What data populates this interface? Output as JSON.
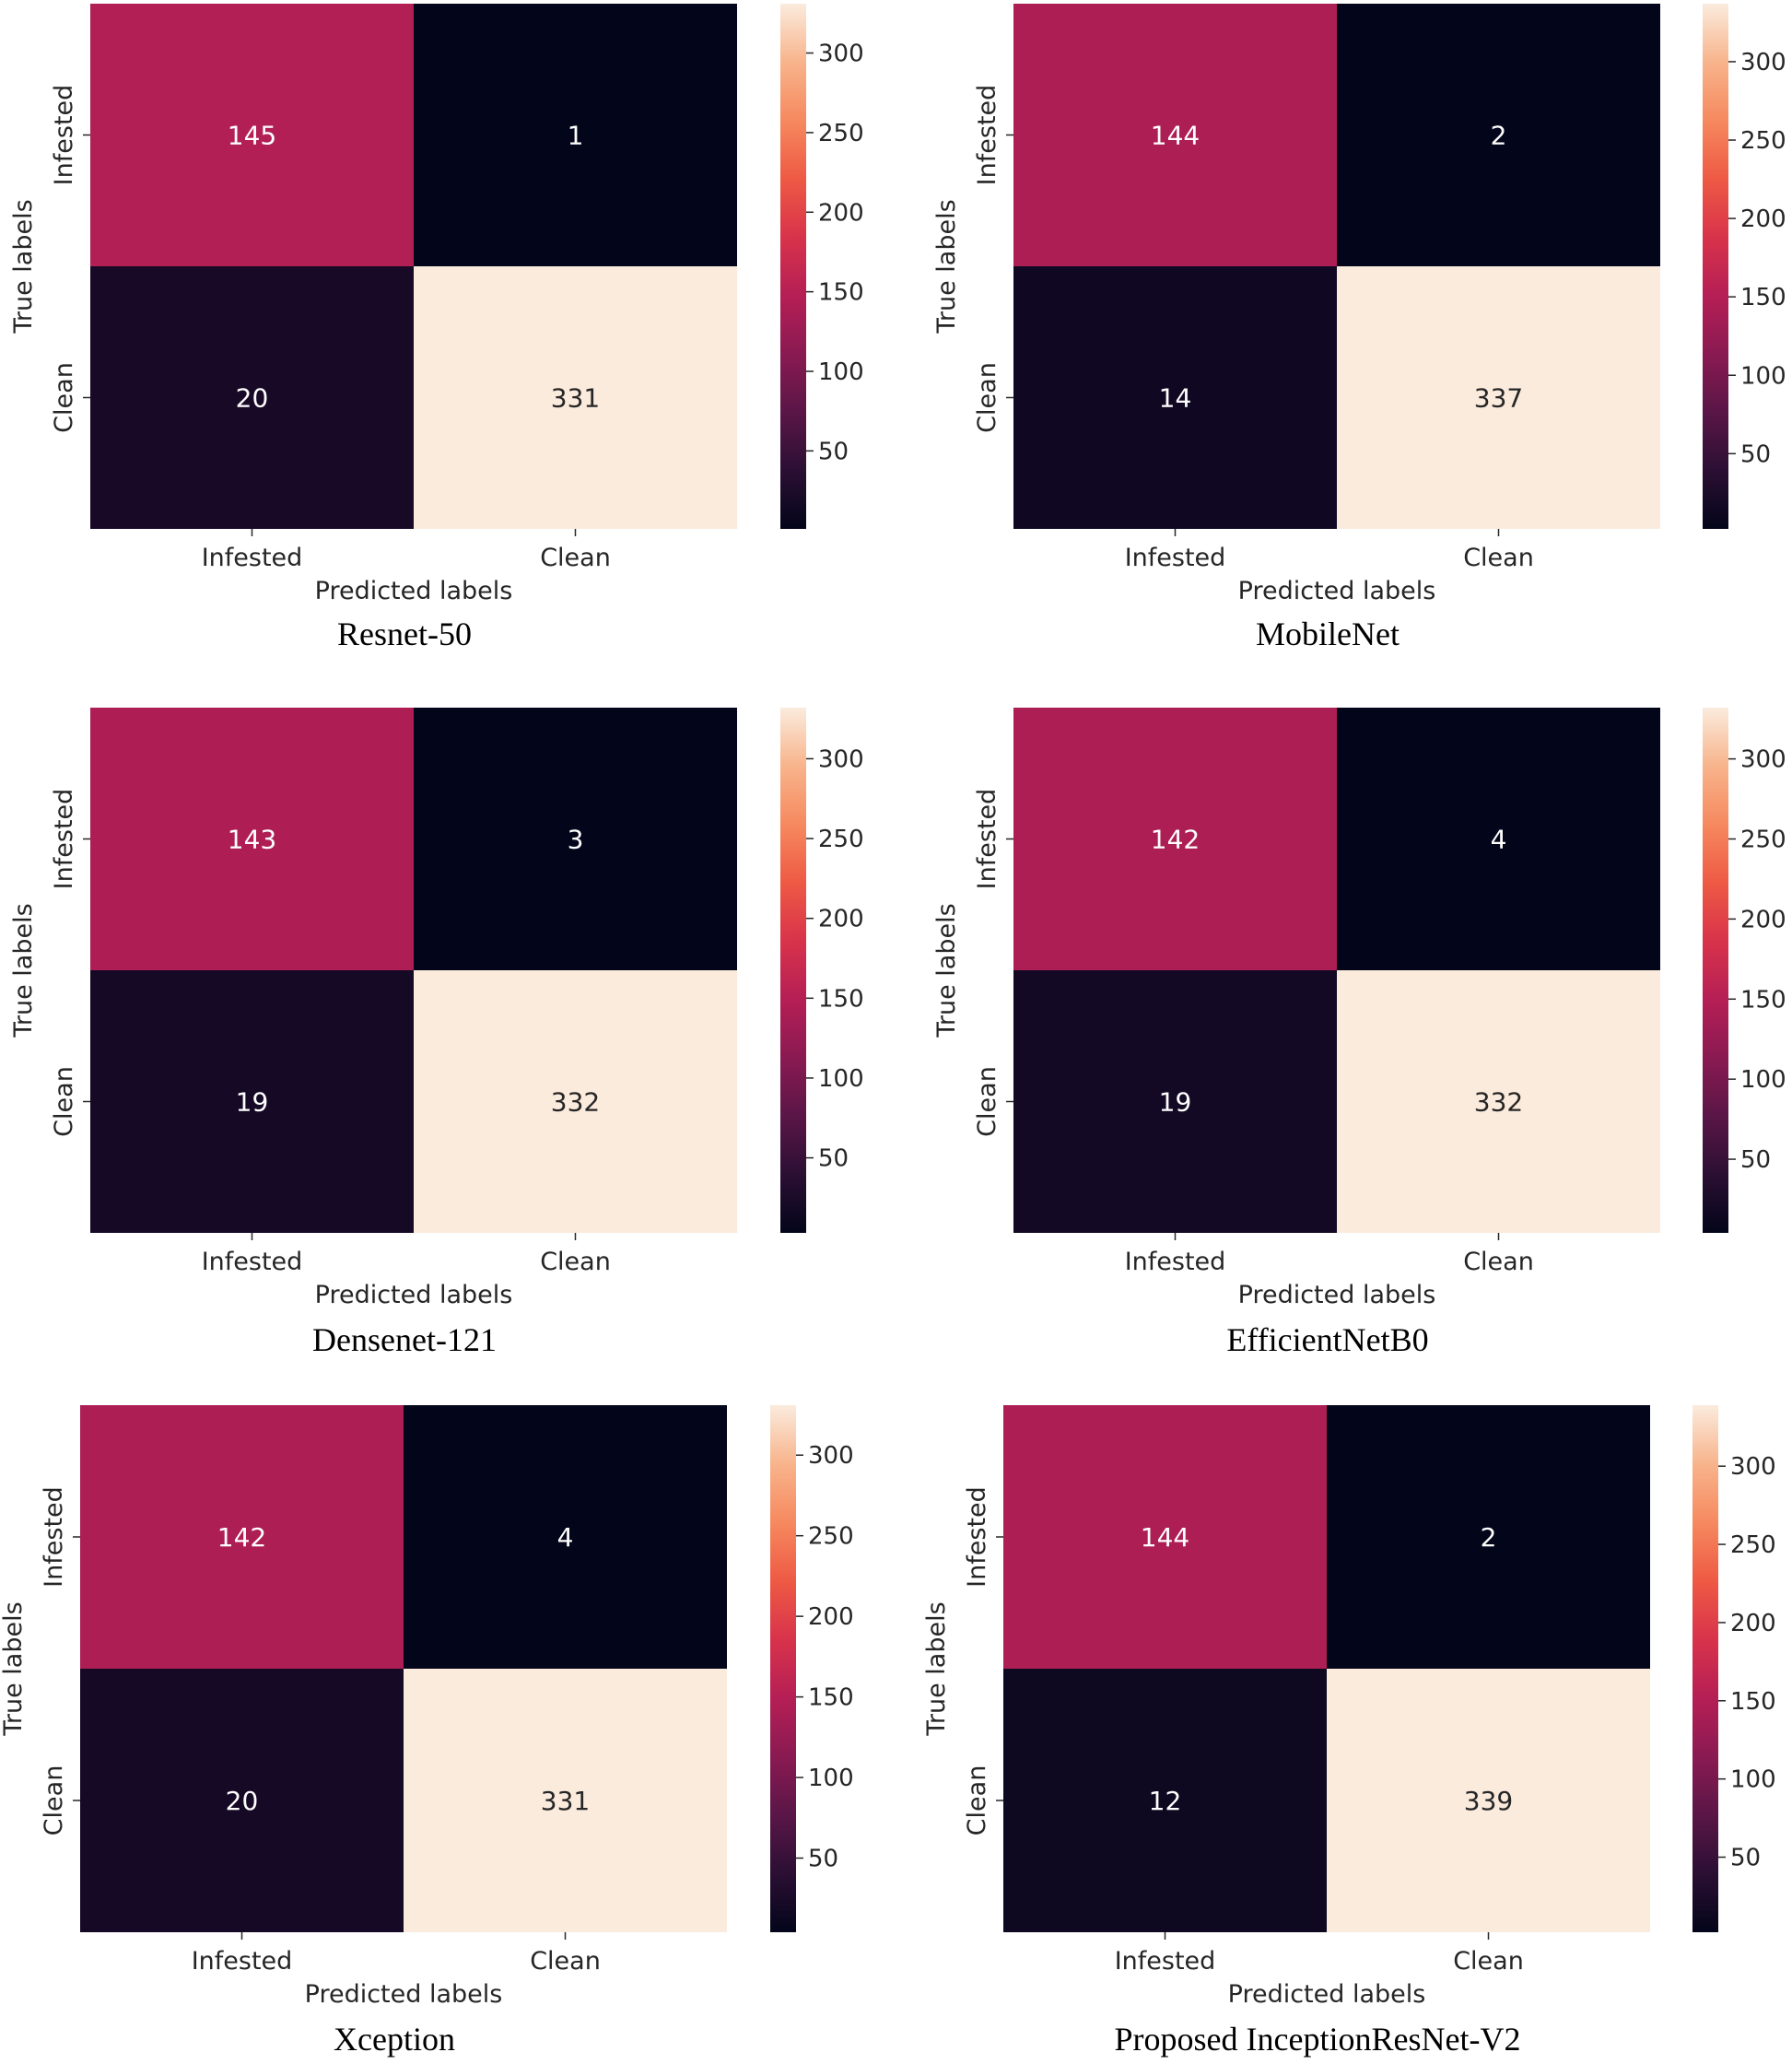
{
  "colors": {
    "background": "#ffffff",
    "cell_text_light": "#ffffff",
    "cell_text_dark": "#262626",
    "axis_text": "#262626",
    "colormap": [
      "#03051a",
      "#2b0f33",
      "#5a1647",
      "#8a1a52",
      "#b51f55",
      "#d8334b",
      "#ee5a44",
      "#f6895f",
      "#f8b48c",
      "#faebdd"
    ]
  },
  "chart_data": [
    {
      "type": "heatmap",
      "title": "Resnet-50",
      "xlabel": "Predicted labels",
      "ylabel": "True labels",
      "x_categories": [
        "Infested",
        "Clean"
      ],
      "y_categories": [
        "Infested",
        "Clean"
      ],
      "values": [
        [
          145,
          1
        ],
        [
          20,
          331
        ]
      ],
      "colorbar_range": [
        1,
        331
      ],
      "colorbar_ticks": [
        50,
        100,
        150,
        200,
        250,
        300
      ],
      "colorbar_tick_labels": [
        "50",
        "100",
        "150",
        "200",
        "250",
        "300"
      ]
    },
    {
      "type": "heatmap",
      "title": "MobileNet",
      "xlabel": "Predicted labels",
      "ylabel": "True labels",
      "x_categories": [
        "Infested",
        "Clean"
      ],
      "y_categories": [
        "Infested",
        "Clean"
      ],
      "values": [
        [
          144,
          2
        ],
        [
          14,
          337
        ]
      ],
      "colorbar_range": [
        2,
        337
      ],
      "colorbar_ticks": [
        50,
        100,
        150,
        200,
        250,
        300
      ],
      "colorbar_tick_labels": [
        "50",
        "100",
        "150",
        "200",
        "250",
        "300"
      ]
    },
    {
      "type": "heatmap",
      "title": "Densenet-121",
      "xlabel": "Predicted labels",
      "ylabel": "True labels",
      "x_categories": [
        "Infested",
        "Clean"
      ],
      "y_categories": [
        "Infested",
        "Clean"
      ],
      "values": [
        [
          143,
          3
        ],
        [
          19,
          332
        ]
      ],
      "colorbar_range": [
        3,
        332
      ],
      "colorbar_ticks": [
        50,
        100,
        150,
        200,
        250,
        300
      ],
      "colorbar_tick_labels": [
        "50",
        "100",
        "150",
        "200",
        "250",
        "300"
      ]
    },
    {
      "type": "heatmap",
      "title": "EfficientNetB0",
      "xlabel": "Predicted labels",
      "ylabel": "True labels",
      "x_categories": [
        "Infested",
        "Clean"
      ],
      "y_categories": [
        "Infested",
        "Clean"
      ],
      "values": [
        [
          142,
          4
        ],
        [
          19,
          332
        ]
      ],
      "colorbar_range": [
        4,
        332
      ],
      "colorbar_ticks": [
        50,
        100,
        150,
        200,
        250,
        300
      ],
      "colorbar_tick_labels": [
        "50",
        "100",
        "150",
        "200",
        "250",
        "300"
      ]
    },
    {
      "type": "heatmap",
      "title": "Xception",
      "xlabel": "Predicted labels",
      "ylabel": "True labels",
      "x_categories": [
        "Infested",
        "Clean"
      ],
      "y_categories": [
        "Infested",
        "Clean"
      ],
      "values": [
        [
          142,
          4
        ],
        [
          20,
          331
        ]
      ],
      "colorbar_range": [
        4,
        331
      ],
      "colorbar_ticks": [
        50,
        100,
        150,
        200,
        250,
        300
      ],
      "colorbar_tick_labels": [
        "50",
        "100",
        "150",
        "200",
        "250",
        "300"
      ]
    },
    {
      "type": "heatmap",
      "title": "Proposed InceptionResNet-V2",
      "xlabel": "Predicted labels",
      "ylabel": "True labels",
      "x_categories": [
        "Infested",
        "Clean"
      ],
      "y_categories": [
        "Infested",
        "Clean"
      ],
      "values": [
        [
          144,
          2
        ],
        [
          12,
          339
        ]
      ],
      "colorbar_range": [
        2,
        339
      ],
      "colorbar_ticks": [
        50,
        100,
        150,
        200,
        250,
        300
      ],
      "colorbar_tick_labels": [
        "50",
        "100",
        "150",
        "200",
        "250",
        "300"
      ]
    }
  ]
}
